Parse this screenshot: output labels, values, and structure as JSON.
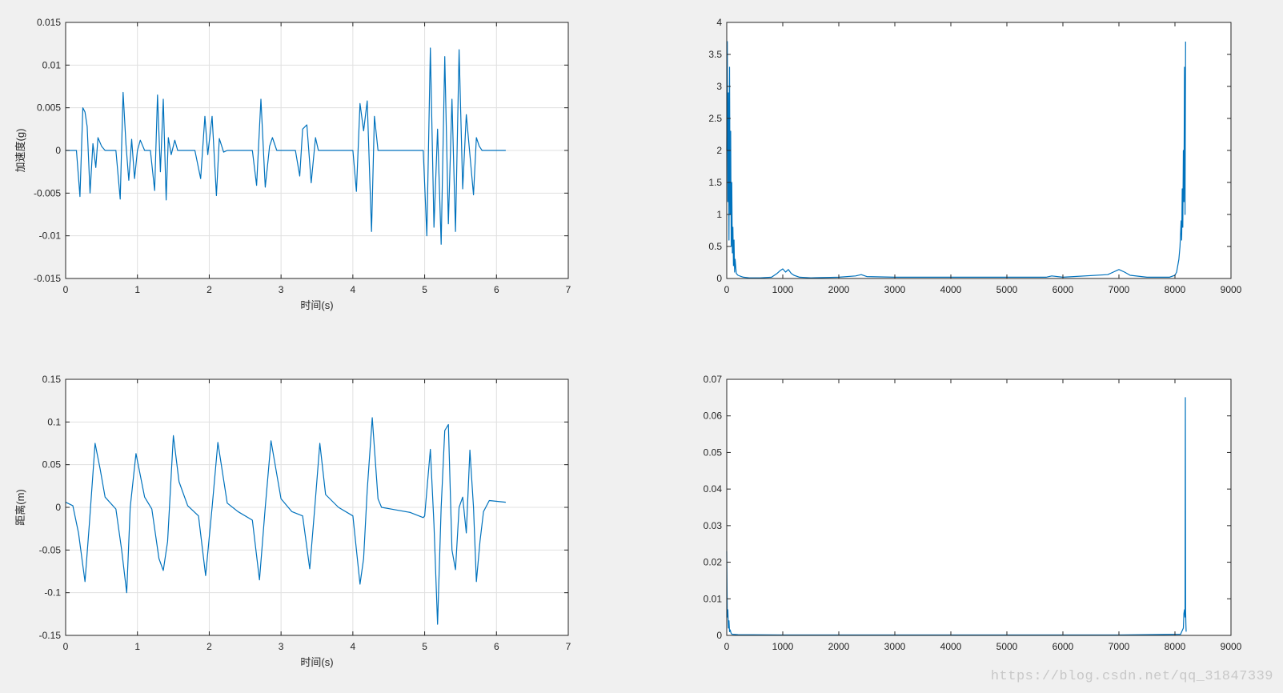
{
  "colors": {
    "background": "#f0f0f0",
    "axes_bg": "#ffffff",
    "line": "#0072bd",
    "grid": "#e0e0e0",
    "axis": "#262626"
  },
  "watermark": "https://blog.csdn.net/qq_31847339",
  "chart_data": [
    {
      "type": "line",
      "title": "",
      "xlabel": "时间(s)",
      "ylabel": "加速度(g)",
      "xlim": [
        0,
        7
      ],
      "ylim": [
        -0.015,
        0.015
      ],
      "grid": true,
      "xticks": [
        0,
        1,
        2,
        3,
        4,
        5,
        6,
        7
      ],
      "xtick_labels": [
        "0",
        "1",
        "2",
        "3",
        "4",
        "5",
        "6",
        "7"
      ],
      "yticks": [
        -0.015,
        -0.01,
        -0.005,
        0,
        0.005,
        0.01,
        0.015
      ],
      "ytick_labels": [
        "-0.015",
        "-0.01",
        "-0.005",
        "0",
        "0.005",
        "0.01",
        "0.015"
      ],
      "series": [
        {
          "x": [
            0,
            0.15,
            0.2,
            0.24,
            0.27,
            0.3,
            0.34,
            0.38,
            0.42,
            0.45,
            0.5,
            0.55,
            0.62,
            0.7,
            0.76,
            0.8,
            0.84,
            0.88,
            0.92,
            0.96,
            1.0,
            1.04,
            1.1,
            1.18,
            1.24,
            1.28,
            1.32,
            1.36,
            1.4,
            1.43,
            1.47,
            1.52,
            1.56,
            1.6,
            1.7,
            1.8,
            1.88,
            1.94,
            1.98,
            2.04,
            2.1,
            2.14,
            2.2,
            2.25,
            2.3,
            2.4,
            2.5,
            2.6,
            2.66,
            2.72,
            2.78,
            2.84,
            2.88,
            2.94,
            3.0,
            3.1,
            3.2,
            3.26,
            3.3,
            3.36,
            3.42,
            3.48,
            3.52,
            3.56,
            3.62,
            3.7,
            3.8,
            3.9,
            4.0,
            4.05,
            4.1,
            4.15,
            4.2,
            4.26,
            4.3,
            4.35,
            4.42,
            4.5,
            4.7,
            4.9,
            4.98,
            5.03,
            5.08,
            5.13,
            5.18,
            5.23,
            5.28,
            5.33,
            5.38,
            5.43,
            5.48,
            5.53,
            5.58,
            5.63,
            5.68,
            5.72,
            5.76,
            5.8,
            5.85,
            5.9,
            6.0,
            6.13
          ],
          "y": [
            0,
            0,
            -0.0054,
            0.005,
            0.0045,
            0.0028,
            -0.005,
            0.0008,
            -0.002,
            0.0015,
            0.0005,
            0,
            0,
            0,
            -0.0057,
            0.0068,
            0.0007,
            -0.0035,
            0.0013,
            -0.0033,
            0,
            0.0012,
            0,
            0,
            -0.0047,
            0.0065,
            -0.0025,
            0.006,
            -0.0058,
            0.0015,
            -0.0005,
            0.0012,
            0,
            0,
            0,
            0,
            -0.0033,
            0.004,
            -0.0005,
            0.004,
            -0.0053,
            0.0014,
            -0.0002,
            0,
            0,
            0,
            0,
            0,
            -0.0041,
            0.006,
            -0.0043,
            0.0005,
            0.0015,
            0,
            0,
            0,
            0,
            -0.003,
            0.0025,
            0.003,
            -0.0038,
            0.0015,
            0,
            0,
            0,
            0,
            0,
            0,
            0,
            -0.0048,
            0.0055,
            0.0023,
            0.0058,
            -0.0095,
            0.004,
            0,
            0,
            0,
            0,
            0,
            0,
            -0.01,
            0.012,
            -0.009,
            0.0025,
            -0.011,
            0.011,
            -0.0086,
            0.006,
            -0.0095,
            0.0118,
            -0.0045,
            0.0042,
            -0.0005,
            -0.0052,
            0.0015,
            0.0005,
            0,
            0,
            0,
            0,
            0
          ]
        }
      ]
    },
    {
      "type": "line",
      "title": "",
      "xlabel": "",
      "ylabel": "",
      "xlim": [
        0,
        9000
      ],
      "ylim": [
        0,
        4
      ],
      "grid": false,
      "xticks": [
        0,
        1000,
        2000,
        3000,
        4000,
        5000,
        6000,
        7000,
        8000,
        9000
      ],
      "xtick_labels": [
        "0",
        "1000",
        "2000",
        "3000",
        "4000",
        "5000",
        "6000",
        "7000",
        "8000",
        "9000"
      ],
      "yticks": [
        0,
        0.5,
        1,
        1.5,
        2,
        2.5,
        3,
        3.5,
        4
      ],
      "ytick_labels": [
        "0",
        "0.5",
        "1",
        "1.5",
        "2",
        "2.5",
        "3",
        "3.5",
        "4"
      ],
      "series": [
        {
          "x": [
            0,
            10,
            20,
            30,
            40,
            50,
            60,
            70,
            80,
            90,
            100,
            110,
            120,
            130,
            140,
            150,
            170,
            200,
            260,
            300,
            400,
            600,
            800,
            900,
            950,
            1000,
            1050,
            1100,
            1150,
            1200,
            1300,
            1500,
            2000,
            2300,
            2400,
            2500,
            3000,
            4000,
            5000,
            5700,
            5800,
            6000,
            6800,
            6900,
            7000,
            7100,
            7200,
            7500,
            7900,
            8000,
            8030,
            8050,
            8070,
            8090,
            8110,
            8120,
            8130,
            8140,
            8150,
            8160,
            8170,
            8180,
            8190
          ],
          "y": [
            2.0,
            3.7,
            1.2,
            2.9,
            0.6,
            3.3,
            1.0,
            2.3,
            0.5,
            1.5,
            0.4,
            0.8,
            0.2,
            0.6,
            0.1,
            0.3,
            0.08,
            0.05,
            0.03,
            0.02,
            0.01,
            0.01,
            0.02,
            0.08,
            0.12,
            0.15,
            0.1,
            0.14,
            0.08,
            0.05,
            0.02,
            0.01,
            0.02,
            0.04,
            0.06,
            0.03,
            0.02,
            0.02,
            0.02,
            0.02,
            0.04,
            0.02,
            0.06,
            0.1,
            0.14,
            0.1,
            0.05,
            0.02,
            0.02,
            0.05,
            0.1,
            0.2,
            0.3,
            0.5,
            0.9,
            0.6,
            1.4,
            0.8,
            2.0,
            1.2,
            3.3,
            1.0,
            3.7
          ]
        }
      ]
    },
    {
      "type": "line",
      "title": "",
      "xlabel": "时间(s)",
      "ylabel": "距离(m)",
      "xlim": [
        0,
        7
      ],
      "ylim": [
        -0.15,
        0.15
      ],
      "grid": true,
      "xticks": [
        0,
        1,
        2,
        3,
        4,
        5,
        6,
        7
      ],
      "xtick_labels": [
        "0",
        "1",
        "2",
        "3",
        "4",
        "5",
        "6",
        "7"
      ],
      "yticks": [
        -0.15,
        -0.1,
        -0.05,
        0,
        0.05,
        0.1,
        0.15
      ],
      "ytick_labels": [
        "-0.15",
        "-0.1",
        "-0.05",
        "0",
        "0.05",
        "0.1",
        "0.15"
      ],
      "series": [
        {
          "x": [
            0,
            0.1,
            0.18,
            0.27,
            0.33,
            0.41,
            0.48,
            0.55,
            0.7,
            0.78,
            0.85,
            0.9,
            0.98,
            1.1,
            1.2,
            1.3,
            1.36,
            1.42,
            1.5,
            1.58,
            1.7,
            1.85,
            1.95,
            2.04,
            2.12,
            2.25,
            2.4,
            2.6,
            2.7,
            2.78,
            2.86,
            3.0,
            3.15,
            3.3,
            3.4,
            3.47,
            3.54,
            3.62,
            3.8,
            4.0,
            4.1,
            4.15,
            4.2,
            4.27,
            4.35,
            4.4,
            4.6,
            4.8,
            4.98,
            5.0,
            5.08,
            5.13,
            5.18,
            5.23,
            5.28,
            5.33,
            5.38,
            5.43,
            5.48,
            5.53,
            5.58,
            5.63,
            5.68,
            5.72,
            5.77,
            5.82,
            5.9,
            6.13
          ],
          "y": [
            0.006,
            0.002,
            -0.03,
            -0.087,
            -0.02,
            0.075,
            0.045,
            0.012,
            -0.002,
            -0.05,
            -0.1,
            0.0,
            0.063,
            0.012,
            -0.002,
            -0.06,
            -0.074,
            -0.04,
            0.084,
            0.03,
            0.002,
            -0.01,
            -0.08,
            0.0,
            0.076,
            0.005,
            -0.005,
            -0.015,
            -0.085,
            0.0,
            0.078,
            0.01,
            -0.005,
            -0.01,
            -0.072,
            0.0,
            0.075,
            0.015,
            0.0,
            -0.01,
            -0.09,
            -0.06,
            0.02,
            0.105,
            0.01,
            0.0,
            -0.003,
            -0.006,
            -0.012,
            -0.01,
            0.068,
            -0.02,
            -0.137,
            0.0,
            0.09,
            0.097,
            -0.05,
            -0.073,
            0.0,
            0.012,
            -0.03,
            0.067,
            0.0,
            -0.087,
            -0.04,
            -0.005,
            0.008,
            0.006
          ]
        }
      ]
    },
    {
      "type": "line",
      "title": "",
      "xlabel": "",
      "ylabel": "",
      "xlim": [
        0,
        9000
      ],
      "ylim": [
        0,
        0.07
      ],
      "grid": false,
      "xticks": [
        0,
        1000,
        2000,
        3000,
        4000,
        5000,
        6000,
        7000,
        8000,
        9000
      ],
      "xtick_labels": [
        "0",
        "1000",
        "2000",
        "3000",
        "4000",
        "5000",
        "6000",
        "7000",
        "8000",
        "9000"
      ],
      "yticks": [
        0,
        0.01,
        0.02,
        0.03,
        0.04,
        0.05,
        0.06,
        0.07
      ],
      "ytick_labels": [
        "0",
        "0.01",
        "0.02",
        "0.03",
        "0.04",
        "0.05",
        "0.06",
        "0.07"
      ],
      "series": [
        {
          "x": [
            0,
            10,
            20,
            30,
            40,
            50,
            60,
            80,
            100,
            200,
            1000,
            3000,
            5000,
            7000,
            8100,
            8150,
            8160,
            8170,
            8180,
            8185,
            8190,
            8195,
            8200
          ],
          "y": [
            0.023,
            0.005,
            0.007,
            0.002,
            0.004,
            0.001,
            0.0015,
            0.0005,
            0.0003,
            0.0002,
            0.0001,
            0.0001,
            0.0001,
            0.0001,
            0.0003,
            0.002,
            0.006,
            0.007,
            0.005,
            0.065,
            0.007,
            0.003,
            0.001
          ]
        }
      ]
    }
  ]
}
